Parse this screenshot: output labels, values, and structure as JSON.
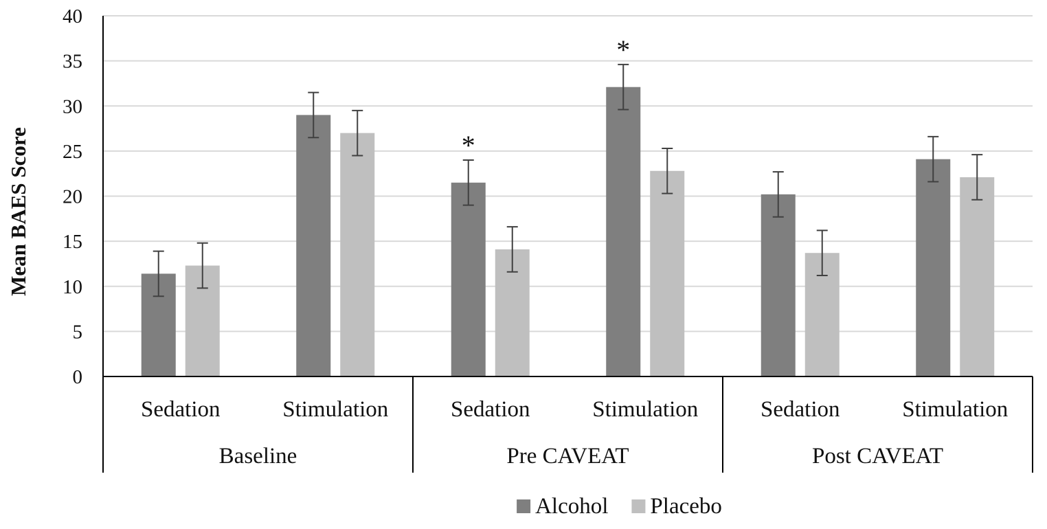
{
  "chart_data": {
    "type": "bar",
    "ylabel": "Mean BAES Score",
    "ylim": [
      0,
      40
    ],
    "yticks": [
      0,
      5,
      10,
      15,
      20,
      25,
      30,
      35,
      40
    ],
    "grid": true,
    "legend_position": "bottom-center",
    "groups": [
      {
        "label": "Baseline",
        "subcategories": [
          "Sedation",
          "Stimulation"
        ]
      },
      {
        "label": "Pre CAVEAT",
        "subcategories": [
          "Sedation",
          "Stimulation"
        ]
      },
      {
        "label": "Post CAVEAT",
        "subcategories": [
          "Sedation",
          "Stimulation"
        ]
      }
    ],
    "series": [
      {
        "name": "Alcohol",
        "color": "#7f7f7f",
        "values": [
          11.4,
          29.0,
          21.5,
          32.1,
          20.2,
          24.1
        ],
        "error": [
          2.5,
          2.5,
          2.5,
          2.5,
          2.5,
          2.5
        ]
      },
      {
        "name": "Placebo",
        "color": "#bfbfbf",
        "values": [
          12.3,
          27.0,
          14.1,
          22.8,
          13.7,
          22.1
        ],
        "error": [
          2.5,
          2.5,
          2.5,
          2.5,
          2.5,
          2.5
        ]
      }
    ],
    "annotations": [
      {
        "text": "*",
        "category_index": 2,
        "series": "Alcohol"
      },
      {
        "text": "*",
        "category_index": 3,
        "series": "Alcohol"
      }
    ]
  }
}
